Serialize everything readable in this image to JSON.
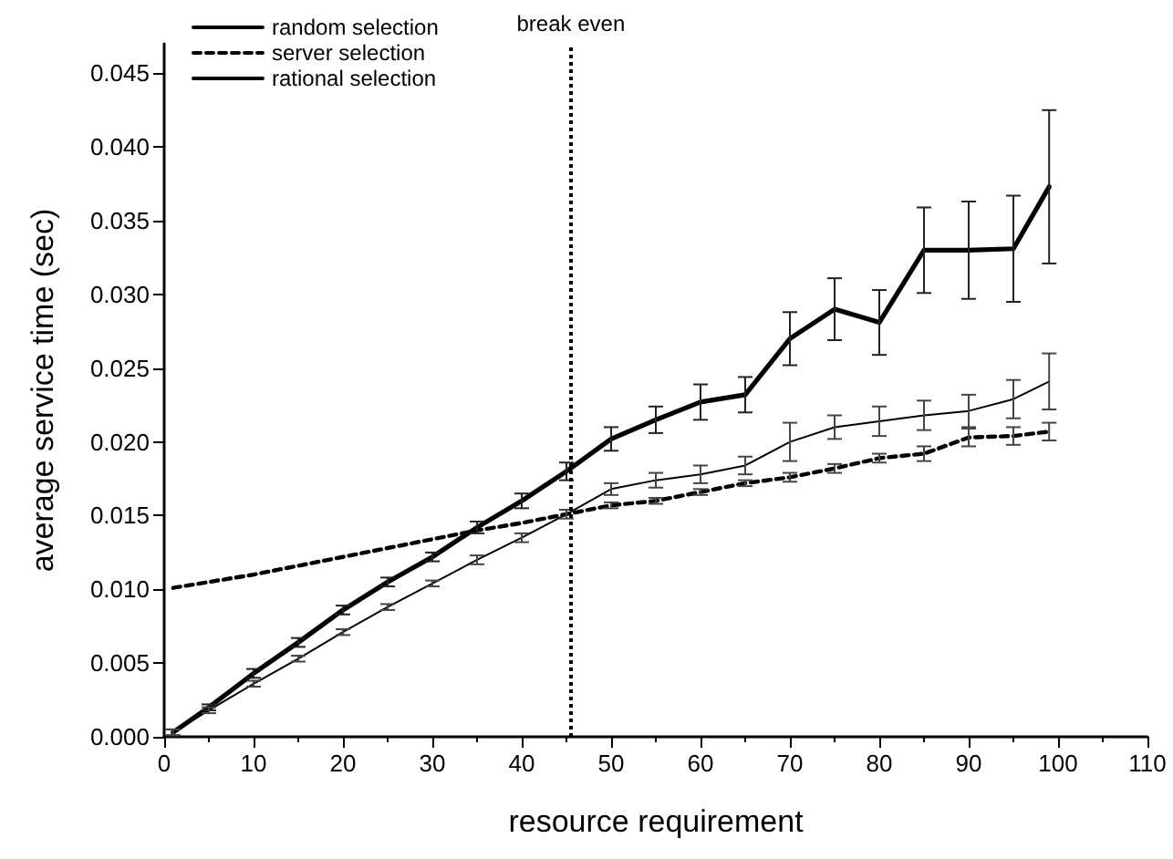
{
  "chart_data": {
    "type": "line",
    "xlabel": "resource requirement",
    "ylabel": "average service time (sec)",
    "x": [
      1,
      5,
      10,
      15,
      20,
      25,
      30,
      35,
      40,
      45,
      50,
      55,
      60,
      65,
      70,
      75,
      80,
      85,
      90,
      95,
      99
    ],
    "series": [
      {
        "name": "random selection",
        "color": "#000000",
        "line_style": "solid",
        "values": [
          0.0003,
          0.002,
          0.0043,
          0.0064,
          0.0086,
          0.0105,
          0.0122,
          0.0142,
          0.016,
          0.018,
          0.0202,
          0.0215,
          0.0227,
          0.0232,
          0.027,
          0.029,
          0.0281,
          0.033,
          0.033,
          0.0331,
          0.0373
        ],
        "errors": [
          0.0002,
          0.0002,
          0.0003,
          0.0003,
          0.0003,
          0.0003,
          0.0003,
          0.0004,
          0.0005,
          0.0006,
          0.0008,
          0.0009,
          0.0012,
          0.0012,
          0.0018,
          0.0021,
          0.0022,
          0.0029,
          0.0033,
          0.0036,
          0.0052
        ]
      },
      {
        "name": "server selection",
        "color": "#000000",
        "line_style": "dashed",
        "values": [
          0.0101,
          0.0105,
          0.011,
          0.0116,
          0.0122,
          0.0128,
          0.0134,
          0.014,
          0.0145,
          0.0151,
          0.0157,
          0.016,
          0.0166,
          0.0172,
          0.0176,
          0.0182,
          0.0189,
          0.0192,
          0.0203,
          0.0204,
          0.0207
        ],
        "errors": [
          null,
          null,
          null,
          null,
          null,
          null,
          null,
          null,
          null,
          null,
          0.0002,
          0.0002,
          0.0002,
          0.0002,
          0.0003,
          0.0003,
          0.0003,
          0.0005,
          0.0006,
          0.0006,
          0.0006
        ]
      },
      {
        "name": "rational selection",
        "color": "#000000",
        "line_style": "solid",
        "values": [
          0.0003,
          0.0018,
          0.0036,
          0.0053,
          0.0071,
          0.0088,
          0.0104,
          0.012,
          0.0135,
          0.0151,
          0.0168,
          0.0174,
          0.0178,
          0.0184,
          0.02,
          0.021,
          0.0214,
          0.0218,
          0.0221,
          0.0229,
          0.0241
        ],
        "errors": [
          0.0002,
          0.0002,
          0.0002,
          0.0002,
          0.0002,
          0.0002,
          0.0002,
          0.0003,
          0.0003,
          0.0003,
          0.0004,
          0.0005,
          0.0006,
          0.0006,
          0.0013,
          0.0008,
          0.001,
          0.001,
          0.0011,
          0.0013,
          0.0019
        ]
      }
    ],
    "xlim": [
      0,
      110
    ],
    "xticks": [
      0,
      10,
      20,
      30,
      40,
      50,
      60,
      70,
      80,
      90,
      100,
      110
    ],
    "ylim": [
      0,
      0.047
    ],
    "yticks": [
      {
        "value": 0,
        "label": "0.000"
      },
      {
        "value": 0.005,
        "label": "0.005"
      },
      {
        "value": 0.01,
        "label": "0.010"
      },
      {
        "value": 0.015,
        "label": "0.015"
      },
      {
        "value": 0.02,
        "label": "0.020"
      },
      {
        "value": 0.025,
        "label": "0.025"
      },
      {
        "value": 0.03,
        "label": "0.030"
      },
      {
        "value": 0.035,
        "label": "0.035"
      },
      {
        "value": 0.04,
        "label": "0.040"
      },
      {
        "value": 0.045,
        "label": "0.045"
      }
    ],
    "ref_lines": [
      {
        "axis": "x",
        "value": 45.5,
        "label": "break even",
        "line_style": "dotted",
        "color": "#000000"
      }
    ],
    "legend": "top left",
    "grid": false,
    "marker": "none"
  }
}
